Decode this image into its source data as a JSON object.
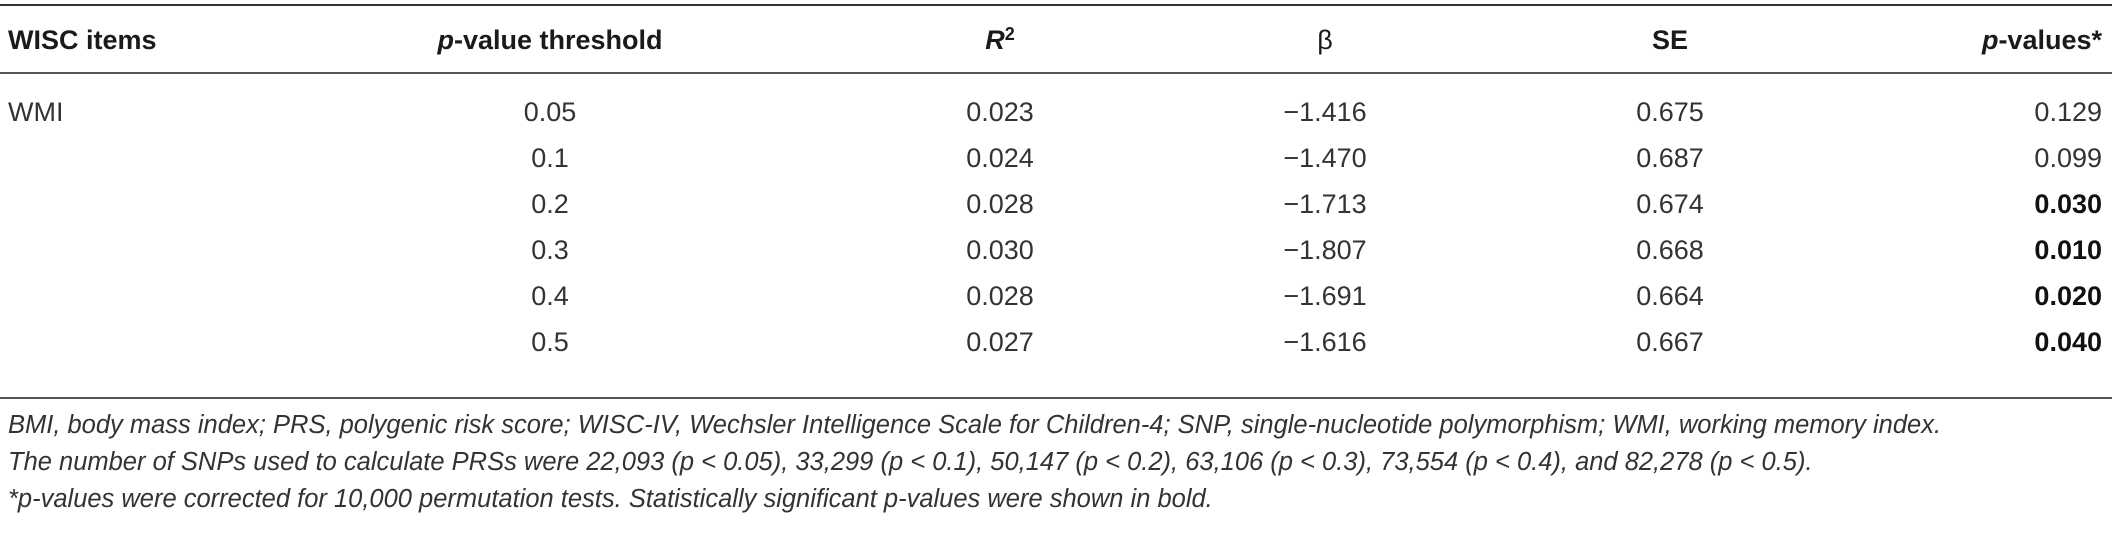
{
  "table": {
    "headers": {
      "items": "WISC items",
      "threshold_italic": "p",
      "threshold_rest": "-value threshold",
      "r2_letter": "R",
      "r2_exp": "2",
      "beta": "β",
      "se": "SE",
      "pvalues_italic": "p",
      "pvalues_rest": "-values*"
    },
    "rows": [
      {
        "item": "WMI",
        "threshold": "0.05",
        "r2": "0.023",
        "beta": "−1.416",
        "se": "0.675",
        "p": "0.129",
        "bold": false
      },
      {
        "item": "",
        "threshold": "0.1",
        "r2": "0.024",
        "beta": "−1.470",
        "se": "0.687",
        "p": "0.099",
        "bold": false
      },
      {
        "item": "",
        "threshold": "0.2",
        "r2": "0.028",
        "beta": "−1.713",
        "se": "0.674",
        "p": "0.030",
        "bold": true
      },
      {
        "item": "",
        "threshold": "0.3",
        "r2": "0.030",
        "beta": "−1.807",
        "se": "0.668",
        "p": "0.010",
        "bold": true
      },
      {
        "item": "",
        "threshold": "0.4",
        "r2": "0.028",
        "beta": "−1.691",
        "se": "0.664",
        "p": "0.020",
        "bold": true
      },
      {
        "item": "",
        "threshold": "0.5",
        "r2": "0.027",
        "beta": "−1.616",
        "se": "0.667",
        "p": "0.040",
        "bold": true
      }
    ]
  },
  "footnotes": {
    "abbreviations": "BMI, body mass index; PRS, polygenic risk score; WISC-IV, Wechsler Intelligence Scale for Children-4; SNP, single-nucleotide polymorphism; WMI, working memory index.",
    "snp_counts": "The number of SNPs used to calculate PRSs were 22,093 (p < 0.05), 33,299 (p < 0.1), 50,147 (p < 0.2), 63,106 (p < 0.3), 73,554 (p < 0.4), and 82,278 (p < 0.5).",
    "correction": "*p-values were corrected for 10,000 permutation tests. Statistically significant p-values were shown in bold."
  }
}
